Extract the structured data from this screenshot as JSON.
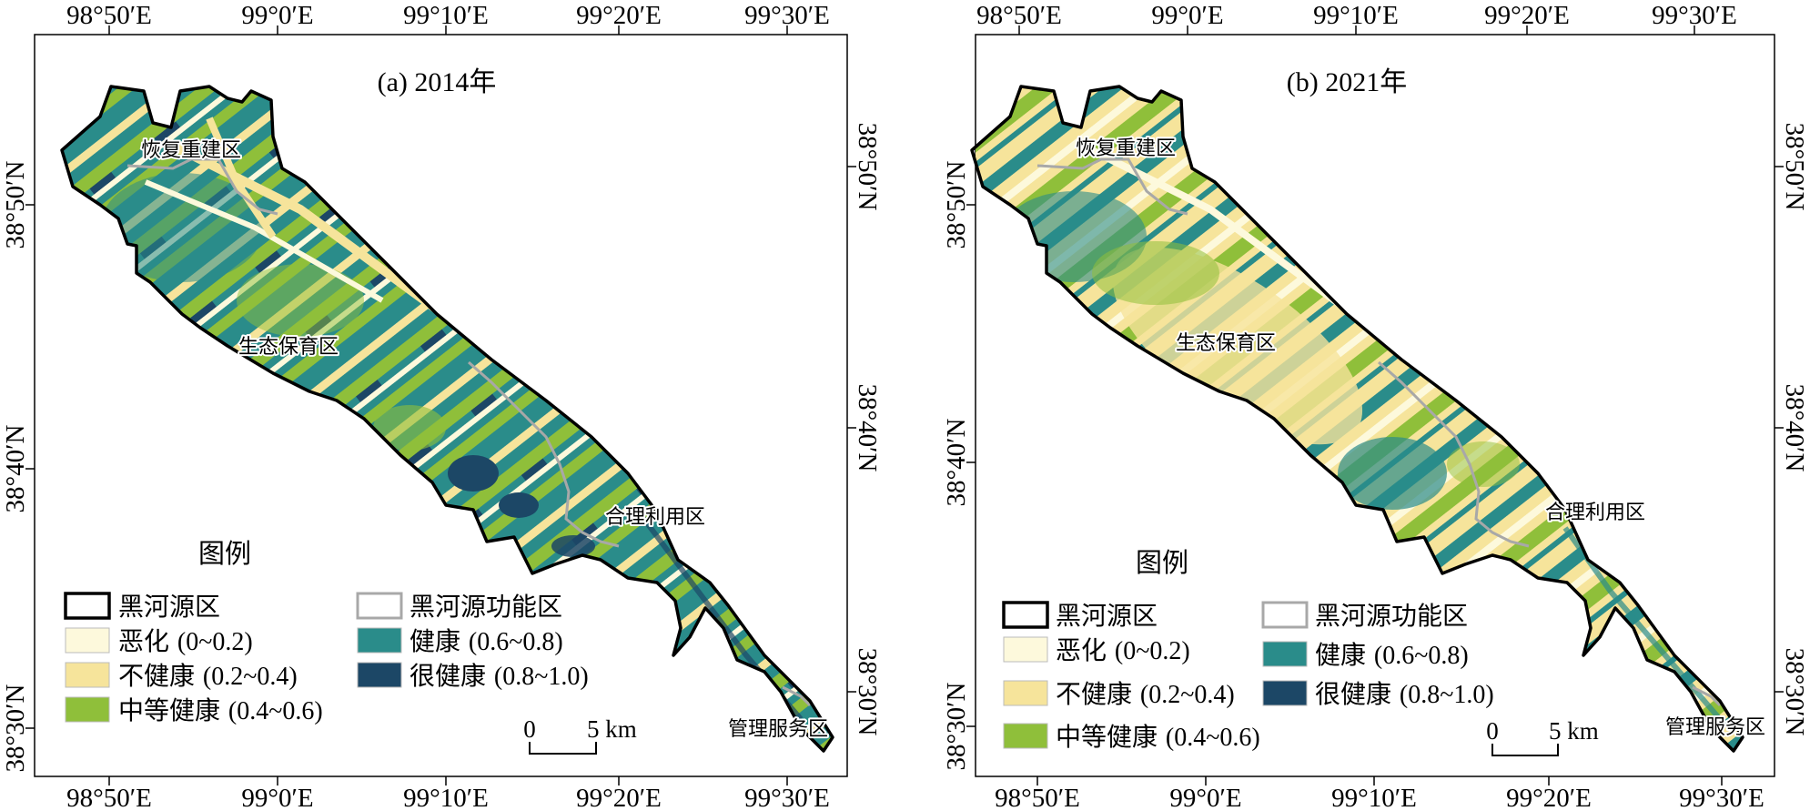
{
  "panels": [
    {
      "title": "(a) 2014年",
      "x_ticks": [
        "98°50′E",
        "99°0′E",
        "99°10′E",
        "99°20′E",
        "99°30′E"
      ],
      "y_ticks": [
        "38°50′N",
        "38°40′N",
        "38°30′N"
      ]
    },
    {
      "title": "(b) 2021年",
      "x_ticks": [
        "98°50′E",
        "99°0′E",
        "99°10′E",
        "99°20′E",
        "99°30′E"
      ],
      "y_ticks": [
        "38°50′N",
        "38°40′N",
        "38°30′N"
      ]
    }
  ],
  "zones": {
    "restoration": "恢复重建区",
    "ecological": "生态保育区",
    "rational_use": "合理利用区",
    "management": "管理服务区"
  },
  "legend": {
    "title": "图例",
    "boundary": "黑河源区",
    "function_zone": "黑河源功能区",
    "classes": [
      {
        "name": "恶化",
        "range": "(0~0.2)",
        "color": "#fdf9dc"
      },
      {
        "name": "不健康",
        "range": "(0.2~0.4)",
        "color": "#f6e49b"
      },
      {
        "name": "中等健康",
        "range": "(0.4~0.6)",
        "color": "#8fbf3a"
      },
      {
        "name": "健康",
        "range": "(0.6~0.8)",
        "color": "#2a8c8a"
      },
      {
        "name": "很健康",
        "range": "(0.8~1.0)",
        "color": "#1c4766"
      }
    ]
  },
  "scale_bar": {
    "zero": "0",
    "distance": "5 km"
  },
  "colors": {
    "boundary": "#000000",
    "function_zone_line": "#a8a8a8"
  }
}
